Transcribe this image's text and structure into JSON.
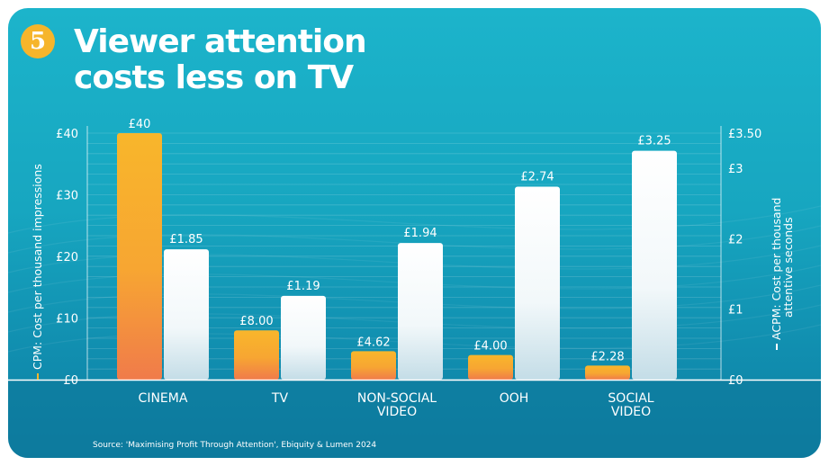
{
  "header": {
    "badge_number": "5",
    "title_line1": "Viewer attention",
    "title_line2": "costs less on TV"
  },
  "source": "Source: 'Maximising Profit Through Attention', Ebiquity & Lumen 2024",
  "colors": {
    "cpm_top": "#f8b62b",
    "cpm_bottom": "#f07b4a",
    "acpm_top": "#ffffff",
    "acpm_bottom": "#c4dde7",
    "axis": "#ffffff"
  },
  "chart_data": {
    "type": "bar",
    "title": "Viewer attention costs less on TV",
    "categories": [
      "CINEMA",
      "TV",
      "NON-SOCIAL\nVIDEO",
      "OOH",
      "SOCIAL\nVIDEO"
    ],
    "series": [
      {
        "name": "CPM: Cost per thousand impressions",
        "axis": "left",
        "values": [
          40,
          8.0,
          4.62,
          4.0,
          2.28
        ],
        "labels": [
          "£40",
          "£8.00",
          "£4.62",
          "£4.00",
          "£2.28"
        ]
      },
      {
        "name": "ACPM: Cost per thousand attentive seconds",
        "axis": "right",
        "values": [
          1.85,
          1.19,
          1.94,
          2.74,
          3.25
        ],
        "labels": [
          "£1.85",
          "£1.19",
          "£1.94",
          "£2.74",
          "£3.25"
        ]
      }
    ],
    "left_axis": {
      "label": "CPM: Cost per thousand impressions",
      "ylim": [
        0,
        40
      ],
      "ticks": [
        0,
        10,
        20,
        30,
        40
      ],
      "tick_labels": [
        "£0",
        "£10",
        "£20",
        "£30",
        "£40"
      ]
    },
    "right_axis": {
      "label_line1": "ACPM: Cost per thousand",
      "label_line2": "attentive seconds",
      "ylim": [
        0,
        3.5
      ],
      "ticks": [
        0,
        1,
        2,
        3,
        3.5
      ],
      "tick_labels": [
        "£0",
        "£1",
        "£2",
        "£3",
        "£3.50"
      ]
    },
    "grid": true,
    "legend": "axis-labels"
  }
}
